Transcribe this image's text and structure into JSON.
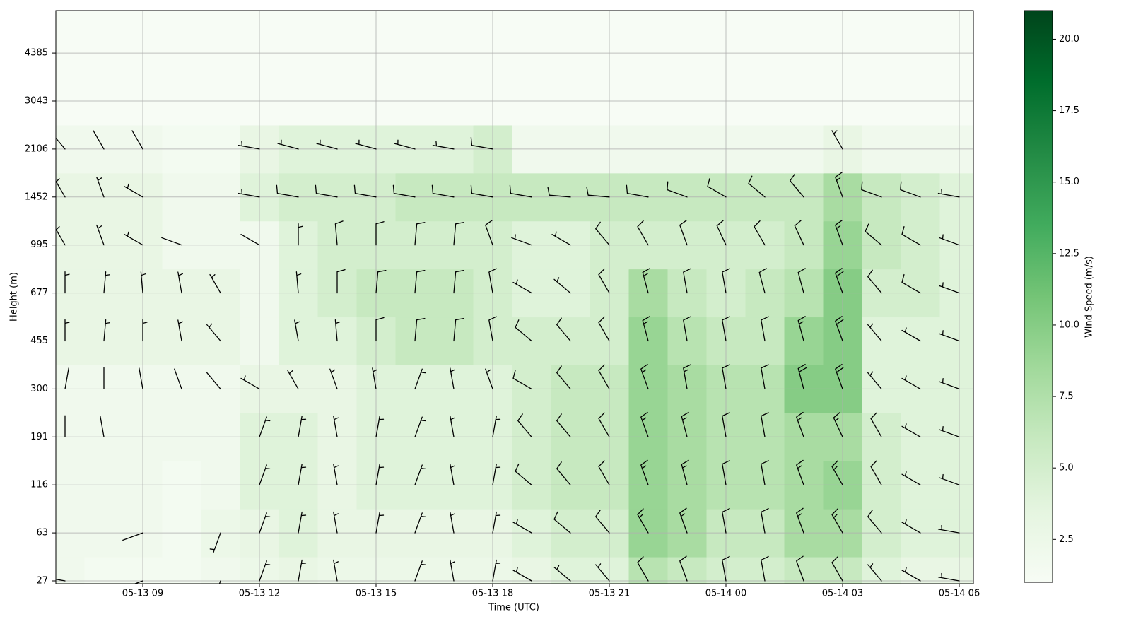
{
  "chart_data": {
    "type": "heatmap",
    "overlay": "barbs",
    "x_label": "Time (UTC)",
    "y_label": "Height (m)",
    "colorbar_label": "Wind Speed (m/s)",
    "x": [
      "05-13 07",
      "05-13 08",
      "05-13 09",
      "05-13 10",
      "05-13 11",
      "05-13 12",
      "05-13 13",
      "05-13 14",
      "05-13 15",
      "05-13 16",
      "05-13 17",
      "05-13 18",
      "05-13 19",
      "05-13 20",
      "05-13 21",
      "05-13 22",
      "05-13 23",
      "05-14 00",
      "05-14 01",
      "05-14 02",
      "05-14 03",
      "05-14 04",
      "05-14 05",
      "05-14 06"
    ],
    "y": [
      27,
      63,
      116,
      191,
      300,
      455,
      677,
      995,
      1452,
      2106,
      3043,
      4385
    ],
    "xticks": [
      "05-13 09",
      "05-13 12",
      "05-13 15",
      "05-13 18",
      "05-13 21",
      "05-14 00",
      "05-14 03",
      "05-14 06"
    ],
    "yticks": [
      27,
      63,
      116,
      191,
      300,
      455,
      677,
      995,
      1452,
      2106,
      3043,
      4385
    ],
    "grid": true,
    "colormap": "Greens",
    "clim": [
      1,
      21
    ],
    "cticks": [
      {
        "value": 2.5,
        "label": "2.5"
      },
      {
        "value": 5,
        "label": "5.0"
      },
      {
        "value": 7.5,
        "label": "7.5"
      },
      {
        "value": 10,
        "label": "10.0"
      },
      {
        "value": 12.5,
        "label": "12.5"
      },
      {
        "value": 15,
        "label": "15.0"
      },
      {
        "value": 17.5,
        "label": "17.5"
      },
      {
        "value": 20,
        "label": "20.0"
      }
    ],
    "values": [
      [
        2,
        1.5,
        1.5,
        1.5,
        2,
        2.5,
        3,
        2.5,
        2.5,
        2.5,
        2.5,
        2.5,
        3,
        4,
        4,
        7,
        6,
        5,
        5,
        6,
        6,
        4,
        3,
        3
      ],
      [
        2,
        2,
        2,
        1.5,
        2.5,
        3,
        4,
        3,
        3,
        3,
        3,
        3,
        4,
        5,
        5,
        9,
        8,
        6,
        6,
        8,
        8,
        5,
        4,
        4
      ],
      [
        2,
        2,
        2,
        1.5,
        2,
        4,
        4,
        3,
        4,
        4,
        4,
        4,
        5,
        6,
        6,
        9,
        8,
        7,
        7,
        8,
        9,
        5,
        4,
        4
      ],
      [
        2,
        2,
        2,
        2,
        2,
        4,
        4,
        3,
        4,
        4,
        4,
        4,
        5,
        6,
        6,
        9,
        8,
        7,
        7,
        8,
        8,
        5,
        4,
        4
      ],
      [
        2,
        2,
        2,
        2,
        2,
        3,
        3,
        3,
        4,
        4,
        4,
        4,
        5,
        6,
        6,
        9,
        8,
        7,
        7,
        10,
        10,
        4,
        4,
        4
      ],
      [
        3,
        3,
        3,
        3,
        3,
        2,
        4,
        4,
        5,
        6,
        6,
        5,
        5,
        5,
        5,
        9,
        7,
        6,
        6,
        9,
        10,
        4,
        4,
        4
      ],
      [
        3,
        3,
        3,
        3,
        3,
        2,
        4,
        5,
        6,
        6,
        6,
        5,
        4,
        4,
        5,
        8,
        6,
        5,
        6,
        7,
        10,
        5,
        5,
        4
      ],
      [
        3,
        3,
        3,
        2,
        2,
        2,
        4,
        5,
        5,
        5,
        5,
        5,
        4,
        4,
        5,
        5,
        5,
        5,
        5,
        6,
        9,
        6,
        5,
        4
      ],
      [
        3,
        3,
        3,
        2,
        2,
        4,
        5,
        5,
        5,
        6,
        6,
        6,
        6,
        6,
        6,
        6,
        6,
        6,
        6,
        6,
        8,
        6,
        5,
        4
      ],
      [
        2,
        2,
        2,
        1.5,
        1.5,
        3,
        4,
        4,
        4,
        4,
        4,
        5,
        2,
        2,
        2,
        2,
        2,
        2,
        2,
        2,
        3,
        2,
        2,
        2
      ],
      [
        1,
        1,
        1,
        1,
        1,
        1,
        1,
        1,
        1,
        1,
        1,
        1,
        1,
        1,
        1,
        1,
        1,
        1,
        1,
        1,
        1,
        1,
        1,
        1
      ],
      [
        1,
        1,
        1,
        1,
        1,
        1,
        1,
        1,
        1,
        1,
        1,
        1,
        1,
        1,
        1,
        1,
        1,
        1,
        1,
        1,
        1,
        1,
        1,
        1
      ]
    ],
    "directions": [
      [
        280,
        null,
        250,
        null,
        200,
        20,
        10,
        350,
        null,
        20,
        350,
        10,
        300,
        310,
        320,
        330,
        340,
        350,
        350,
        340,
        330,
        320,
        300,
        280
      ],
      [
        null,
        null,
        250,
        null,
        200,
        20,
        10,
        350,
        10,
        20,
        350,
        10,
        300,
        310,
        320,
        330,
        340,
        350,
        350,
        340,
        330,
        320,
        300,
        280
      ],
      [
        null,
        null,
        null,
        null,
        null,
        20,
        10,
        350,
        10,
        20,
        350,
        10,
        310,
        320,
        330,
        340,
        345,
        350,
        350,
        340,
        330,
        330,
        300,
        290
      ],
      [
        0,
        350,
        null,
        null,
        null,
        20,
        10,
        350,
        10,
        20,
        350,
        10,
        320,
        320,
        330,
        340,
        345,
        350,
        350,
        340,
        335,
        330,
        300,
        290
      ],
      [
        10,
        0,
        350,
        340,
        320,
        300,
        330,
        340,
        350,
        20,
        350,
        340,
        300,
        320,
        330,
        340,
        350,
        350,
        350,
        345,
        340,
        320,
        300,
        290
      ],
      [
        0,
        5,
        0,
        350,
        320,
        null,
        350,
        355,
        0,
        5,
        5,
        350,
        310,
        320,
        330,
        345,
        350,
        350,
        350,
        345,
        340,
        320,
        300,
        290
      ],
      [
        0,
        5,
        355,
        350,
        330,
        null,
        355,
        0,
        5,
        5,
        5,
        350,
        300,
        310,
        330,
        345,
        350,
        350,
        345,
        345,
        340,
        320,
        300,
        290
      ],
      [
        330,
        340,
        300,
        290,
        null,
        300,
        0,
        355,
        0,
        5,
        5,
        340,
        290,
        300,
        320,
        330,
        340,
        335,
        330,
        335,
        340,
        310,
        300,
        290
      ],
      [
        330,
        340,
        300,
        null,
        null,
        280,
        280,
        280,
        280,
        280,
        280,
        280,
        280,
        275,
        275,
        280,
        290,
        300,
        310,
        320,
        340,
        290,
        290,
        280
      ],
      [
        320,
        330,
        330,
        null,
        null,
        280,
        285,
        285,
        285,
        285,
        280,
        280,
        null,
        null,
        null,
        null,
        null,
        null,
        null,
        null,
        330,
        null,
        null,
        null
      ],
      [
        null,
        null,
        null,
        null,
        null,
        null,
        null,
        null,
        null,
        null,
        null,
        null,
        null,
        null,
        null,
        null,
        null,
        null,
        null,
        null,
        null,
        null,
        null,
        null
      ],
      [
        null,
        null,
        null,
        null,
        null,
        null,
        null,
        null,
        null,
        null,
        null,
        null,
        null,
        null,
        null,
        null,
        null,
        null,
        null,
        null,
        null,
        null,
        null,
        null
      ]
    ]
  }
}
